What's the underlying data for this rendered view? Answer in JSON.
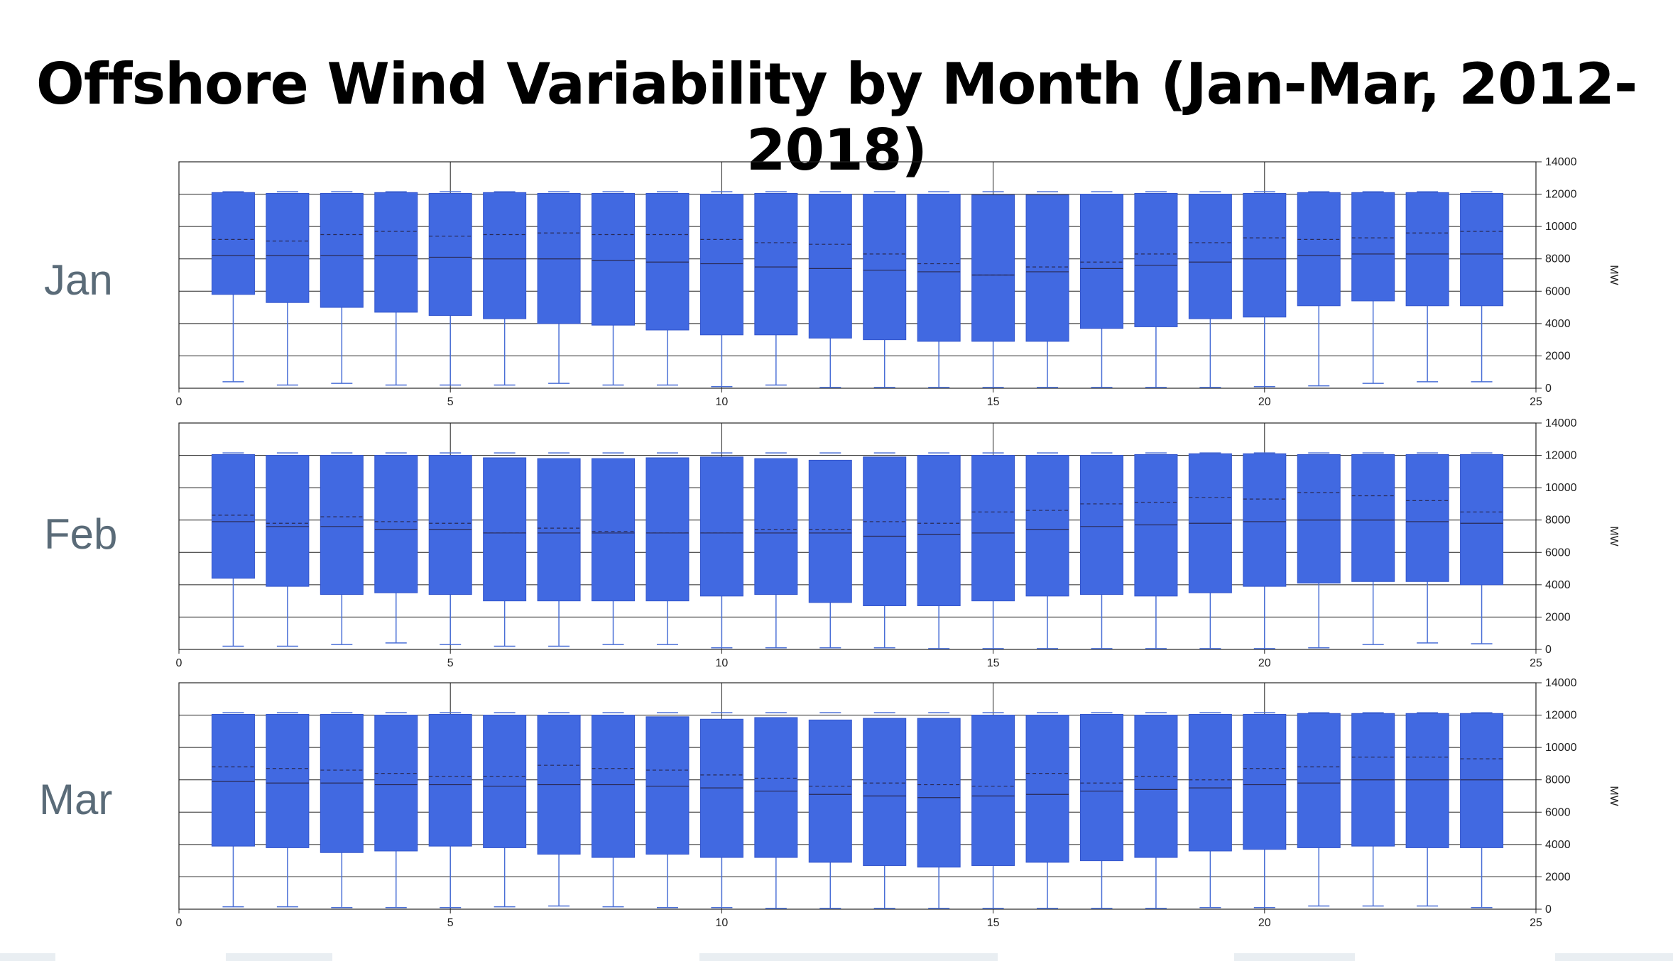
{
  "title": "Offshore Wind Variability by Month (Jan-Mar, 2012-2018)",
  "colors": {
    "box": "#4169e1",
    "whisker": "#4a6fd6",
    "grid": "#000000"
  },
  "chart_data": [
    {
      "type": "box",
      "month": "Jan",
      "ylabel": "MW",
      "xlim": [
        0,
        25
      ],
      "ylim": [
        0,
        14000
      ],
      "xticks": [
        "0",
        "5",
        "10",
        "15",
        "20",
        "25"
      ],
      "yticks": [
        "0",
        "2000",
        "4000",
        "6000",
        "8000",
        "10000",
        "12000",
        "14000"
      ],
      "x": [
        1,
        2,
        3,
        4,
        5,
        6,
        7,
        8,
        9,
        10,
        11,
        12,
        13,
        14,
        15,
        16,
        17,
        18,
        19,
        20,
        21,
        22,
        23,
        24
      ],
      "min": [
        400,
        200,
        300,
        200,
        200,
        200,
        300,
        200,
        200,
        100,
        200,
        50,
        50,
        50,
        50,
        50,
        50,
        50,
        50,
        100,
        150,
        300,
        400,
        400
      ],
      "q1": [
        5800,
        5300,
        5000,
        4700,
        4500,
        4300,
        4000,
        3900,
        3600,
        3300,
        3300,
        3100,
        3000,
        2900,
        2900,
        2900,
        3700,
        3800,
        4300,
        4400,
        5100,
        5400,
        5100,
        5100
      ],
      "median": [
        8200,
        8200,
        8200,
        8200,
        8100,
        8000,
        8000,
        7900,
        7800,
        7700,
        7500,
        7400,
        7300,
        7200,
        7000,
        7200,
        7400,
        7600,
        7800,
        8000,
        8200,
        8300,
        8300,
        8300
      ],
      "mean": [
        9200,
        9100,
        9500,
        9700,
        9400,
        9500,
        9600,
        9500,
        9500,
        9200,
        9000,
        8900,
        8300,
        7700,
        7000,
        7500,
        7800,
        8300,
        9000,
        9300,
        9200,
        9300,
        9600,
        9700
      ],
      "q3": [
        12100,
        12050,
        12050,
        12100,
        12050,
        12100,
        12050,
        12050,
        12050,
        12000,
        12050,
        12000,
        12000,
        12000,
        11950,
        11950,
        12000,
        12050,
        12000,
        12050,
        12100,
        12100,
        12100,
        12050
      ],
      "max": [
        12150,
        12150,
        12150,
        12150,
        12150,
        12150,
        12150,
        12150,
        12150,
        12150,
        12150,
        12150,
        12150,
        12150,
        12150,
        12150,
        12150,
        12150,
        12150,
        12150,
        12150,
        12150,
        12150,
        12150
      ]
    },
    {
      "type": "box",
      "month": "Feb",
      "ylabel": "MW",
      "xlim": [
        0,
        25
      ],
      "ylim": [
        0,
        14000
      ],
      "xticks": [
        "0",
        "5",
        "10",
        "15",
        "20",
        "25"
      ],
      "yticks": [
        "0",
        "2000",
        "4000",
        "6000",
        "8000",
        "10000",
        "12000",
        "14000"
      ],
      "x": [
        1,
        2,
        3,
        4,
        5,
        6,
        7,
        8,
        9,
        10,
        11,
        12,
        13,
        14,
        15,
        16,
        17,
        18,
        19,
        20,
        21,
        22,
        23,
        24
      ],
      "min": [
        200,
        200,
        300,
        400,
        300,
        200,
        200,
        300,
        300,
        100,
        100,
        100,
        100,
        50,
        50,
        50,
        50,
        50,
        50,
        50,
        100,
        300,
        400,
        350
      ],
      "q1": [
        4400,
        3900,
        3400,
        3500,
        3400,
        3000,
        3000,
        3000,
        3000,
        3300,
        3400,
        2900,
        2700,
        2700,
        3000,
        3300,
        3400,
        3300,
        3500,
        3900,
        4100,
        4200,
        4200,
        4000
      ],
      "median": [
        7900,
        7600,
        7600,
        7400,
        7400,
        7200,
        7200,
        7200,
        7200,
        7200,
        7200,
        7200,
        7000,
        7100,
        7200,
        7400,
        7600,
        7700,
        7800,
        7900,
        8000,
        8000,
        7900,
        7800
      ],
      "mean": [
        8300,
        7800,
        8200,
        7900,
        7800,
        7200,
        7500,
        7300,
        7200,
        7200,
        7400,
        7400,
        7900,
        7800,
        8500,
        8600,
        9000,
        9100,
        9400,
        9300,
        9700,
        9500,
        9200,
        8500
      ],
      "q3": [
        12050,
        12000,
        12000,
        12000,
        12000,
        11850,
        11800,
        11800,
        11850,
        11900,
        11800,
        11700,
        11900,
        12000,
        12000,
        12000,
        12000,
        12050,
        12100,
        12100,
        12050,
        12050,
        12050,
        12050
      ],
      "max": [
        12150,
        12150,
        12150,
        12150,
        12150,
        12150,
        12150,
        12150,
        12150,
        12150,
        12150,
        12150,
        12150,
        12150,
        12150,
        12150,
        12150,
        12150,
        12150,
        12150,
        12150,
        12150,
        12150,
        12150
      ]
    },
    {
      "type": "box",
      "month": "Mar",
      "ylabel": "MW",
      "xlim": [
        0,
        25
      ],
      "ylim": [
        0,
        14000
      ],
      "xticks": [
        "0",
        "5",
        "10",
        "15",
        "20",
        "25"
      ],
      "yticks": [
        "0",
        "2000",
        "4000",
        "6000",
        "8000",
        "10000",
        "12000",
        "14000"
      ],
      "x": [
        1,
        2,
        3,
        4,
        5,
        6,
        7,
        8,
        9,
        10,
        11,
        12,
        13,
        14,
        15,
        16,
        17,
        18,
        19,
        20,
        21,
        22,
        23,
        24
      ],
      "min": [
        150,
        150,
        100,
        100,
        100,
        150,
        200,
        150,
        100,
        100,
        50,
        50,
        50,
        50,
        50,
        50,
        50,
        50,
        100,
        100,
        200,
        200,
        200,
        100
      ],
      "q1": [
        3900,
        3800,
        3500,
        3600,
        3900,
        3800,
        3400,
        3200,
        3400,
        3200,
        3200,
        2900,
        2700,
        2600,
        2700,
        2900,
        3000,
        3200,
        3600,
        3700,
        3800,
        3900,
        3800,
        3800
      ],
      "median": [
        7900,
        7800,
        7800,
        7700,
        7700,
        7600,
        7700,
        7700,
        7600,
        7500,
        7300,
        7100,
        7000,
        6900,
        7000,
        7100,
        7300,
        7400,
        7500,
        7700,
        7800,
        8000,
        8000,
        8000
      ],
      "mean": [
        8800,
        8700,
        8600,
        8400,
        8200,
        8200,
        8900,
        8700,
        8600,
        8300,
        8100,
        7600,
        7800,
        7700,
        7600,
        8400,
        7800,
        8200,
        8000,
        8700,
        8800,
        9400,
        9400,
        9300
      ],
      "q3": [
        12050,
        12050,
        12050,
        12000,
        12050,
        12000,
        12000,
        12000,
        11900,
        11750,
        11850,
        11700,
        11800,
        11800,
        12000,
        12000,
        12050,
        12000,
        12050,
        12050,
        12100,
        12100,
        12100,
        12100
      ],
      "max": [
        12150,
        12150,
        12150,
        12150,
        12150,
        12150,
        12150,
        12150,
        12150,
        12150,
        12150,
        12150,
        12150,
        12150,
        12150,
        12150,
        12150,
        12150,
        12150,
        12150,
        12150,
        12150,
        12150,
        12150
      ]
    }
  ]
}
